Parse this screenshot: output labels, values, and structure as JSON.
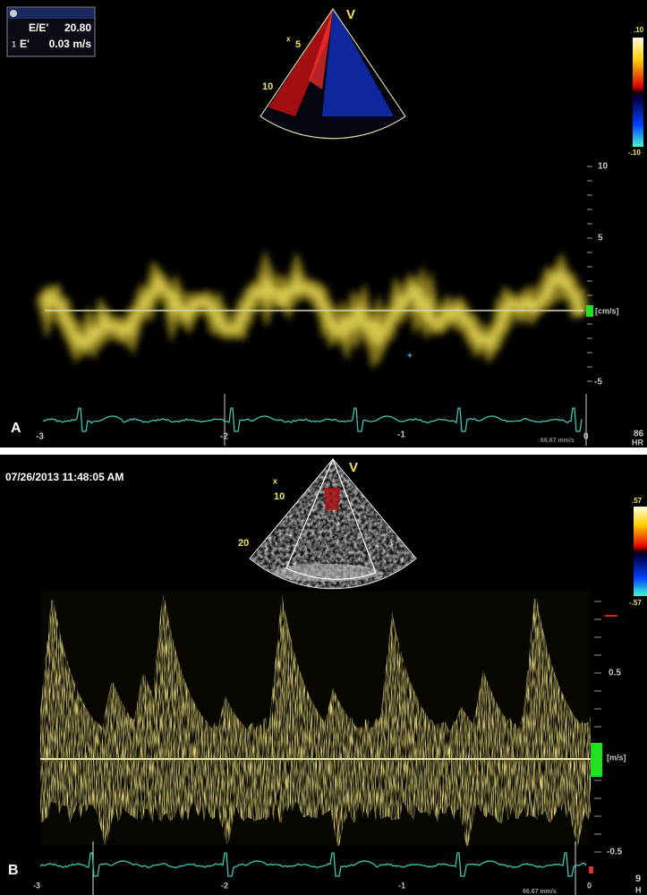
{
  "panel_a": {
    "label": "A",
    "measurements": [
      {
        "index": "",
        "name": "E/E'",
        "value": "20.80"
      },
      {
        "index": "1",
        "name": "E'",
        "value": "0.03 m/s"
      }
    ],
    "probe_marker": "V",
    "orientation_marker": "x",
    "depth_labels": [
      "5",
      "10"
    ],
    "color_scale": {
      "top": ".10",
      "bottom": "-.10"
    },
    "velocity_scale": {
      "top": "10",
      "upper": "5",
      "lower": "-5",
      "unit": "[cm/s]"
    },
    "time_labels": [
      "-3",
      "-2",
      "-1",
      "0"
    ],
    "sweep_speed": "66.67 mm/s",
    "heart_rate": {
      "value": "86",
      "label": "HR"
    }
  },
  "panel_b": {
    "label": "B",
    "timestamp": "07/26/2013 11:48:05 AM",
    "probe_marker": "V",
    "orientation_marker": "x",
    "depth_labels": [
      "10",
      "20"
    ],
    "color_scale": {
      "top": ".57",
      "bottom": "-.57"
    },
    "velocity_scale": {
      "upper": "0.5",
      "lower": "-0.5",
      "unit": "[m/s]"
    },
    "time_labels": [
      "-3",
      "-2",
      "-1",
      "0"
    ],
    "sweep_speed": "66.67 mm/s",
    "heart_rate": {
      "value": "9",
      "label": "H"
    }
  }
}
